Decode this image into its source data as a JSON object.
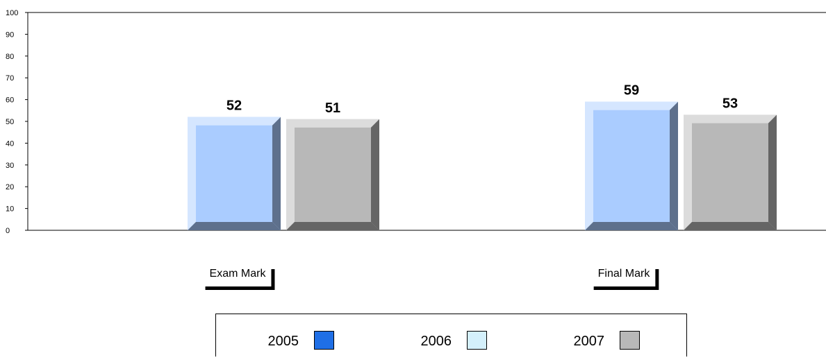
{
  "chart_data": {
    "type": "bar",
    "categories": [
      "Exam Mark",
      "Final Mark"
    ],
    "series": [
      {
        "name": "2005",
        "values": [
          null,
          null
        ],
        "color": "#1f6fe6"
      },
      {
        "name": "2006",
        "values": [
          52,
          59
        ],
        "color": "#aaccff"
      },
      {
        "name": "2007",
        "values": [
          51,
          53
        ],
        "color": "#b8b8b8"
      }
    ],
    "y_ticks": [
      0,
      10,
      20,
      30,
      40,
      50,
      60,
      70,
      80,
      90,
      100
    ],
    "ylim": [
      0,
      100
    ],
    "grid": false,
    "legend_position": "bottom-center",
    "legend_swatch_colors": [
      "#1f6fe6",
      "#d4f0fb",
      "#b8b8b8"
    ]
  }
}
